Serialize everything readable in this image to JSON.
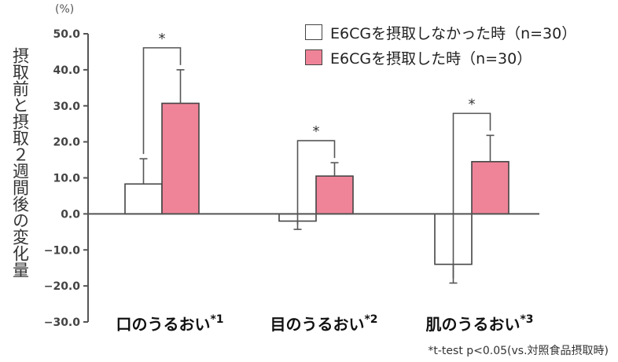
{
  "unit_label": "(%)",
  "ylabel": "摂取前と摂取２週間後の変化量",
  "legend": [
    {
      "label": "E6CGを摂取しなかった時（n=30）",
      "color": "#ffffff"
    },
    {
      "label": "E6CGを摂取した時（n=30）",
      "color": "#ef8498"
    }
  ],
  "footnote": "*t-test p<0.05(vs.対照食品摂取時)",
  "chart_data": {
    "type": "bar",
    "title": "",
    "xlabel": "",
    "ylabel": "摂取前と摂取２週間後の変化量",
    "ylim": [
      -30,
      50
    ],
    "yticks": [
      50,
      40,
      30,
      20,
      10,
      0,
      -10,
      -20,
      -30
    ],
    "ytick_labels": [
      "50.0",
      "40.0",
      "30.0",
      "20.0",
      "10.0",
      "0.0",
      "−10.0",
      "−20.0",
      "−30.0"
    ],
    "categories": [
      {
        "label": "口のうるおい",
        "sup": "*1"
      },
      {
        "label": "目のうるおい",
        "sup": "*2"
      },
      {
        "label": "肌のうるおい",
        "sup": "*3"
      }
    ],
    "series": [
      {
        "name": "E6CGを摂取しなかった時（n=30）",
        "color": "#ffffff",
        "values": [
          8.3,
          -2.0,
          -14.0
        ],
        "error": [
          7.0,
          2.3,
          5.2
        ]
      },
      {
        "name": "E6CGを摂取した時（n=30）",
        "color": "#ef8498",
        "values": [
          30.7,
          10.5,
          14.5
        ],
        "error": [
          9.3,
          3.7,
          7.3
        ]
      }
    ],
    "significance": [
      "*",
      "*",
      "*"
    ],
    "grid": false,
    "legend_position": "top-right"
  }
}
